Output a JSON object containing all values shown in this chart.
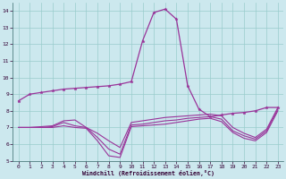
{
  "xlabel": "Windchill (Refroidissement éolien,°C)",
  "bg_color": "#cce8ee",
  "line_color": "#993399",
  "grid_color": "#99cccc",
  "xlim": [
    -0.5,
    23.5
  ],
  "ylim": [
    5.0,
    14.5
  ],
  "yticks": [
    5,
    6,
    7,
    8,
    9,
    10,
    11,
    12,
    13,
    14
  ],
  "xticks": [
    0,
    1,
    2,
    3,
    4,
    5,
    6,
    7,
    8,
    9,
    10,
    11,
    12,
    13,
    14,
    15,
    16,
    17,
    18,
    19,
    20,
    21,
    22,
    23
  ],
  "s1_x": [
    0,
    1,
    2,
    3,
    4,
    5,
    6,
    7,
    8,
    9,
    10,
    11,
    12,
    13,
    14,
    15,
    16,
    17,
    18,
    19,
    20,
    21,
    22,
    23
  ],
  "s1_y": [
    8.6,
    9.0,
    9.1,
    9.2,
    9.3,
    9.35,
    9.4,
    9.45,
    9.5,
    9.6,
    9.75,
    12.2,
    13.9,
    14.1,
    13.5,
    9.5,
    8.1,
    7.65,
    7.75,
    7.85,
    7.9,
    8.0,
    8.2,
    8.2
  ],
  "s2_x": [
    0,
    1,
    2,
    3,
    4,
    5,
    6,
    7,
    8,
    9,
    10,
    11,
    12,
    13,
    14,
    15,
    16,
    17,
    18,
    19,
    20,
    21,
    22,
    23
  ],
  "s2_y": [
    7.0,
    7.0,
    7.05,
    7.1,
    7.4,
    7.45,
    7.0,
    6.65,
    6.2,
    5.8,
    7.3,
    7.4,
    7.5,
    7.6,
    7.65,
    7.7,
    7.75,
    7.8,
    7.7,
    7.0,
    6.65,
    6.4,
    6.9,
    8.2
  ],
  "s3_x": [
    0,
    1,
    2,
    3,
    4,
    5,
    6,
    7,
    8,
    9,
    10,
    11,
    12,
    13,
    14,
    15,
    16,
    17,
    18,
    19,
    20,
    21,
    22,
    23
  ],
  "s3_y": [
    7.0,
    7.0,
    7.0,
    7.05,
    7.3,
    7.1,
    7.0,
    6.4,
    5.7,
    5.4,
    7.15,
    7.2,
    7.3,
    7.4,
    7.45,
    7.55,
    7.6,
    7.65,
    7.5,
    6.8,
    6.5,
    6.3,
    6.8,
    8.1
  ],
  "s4_x": [
    0,
    1,
    2,
    3,
    4,
    5,
    6,
    7,
    8,
    9,
    10,
    11,
    12,
    13,
    14,
    15,
    16,
    17,
    18,
    19,
    20,
    21,
    22,
    23
  ],
  "s4_y": [
    7.0,
    7.0,
    7.0,
    7.0,
    7.1,
    7.0,
    6.95,
    6.2,
    5.3,
    5.2,
    7.05,
    7.1,
    7.15,
    7.2,
    7.3,
    7.4,
    7.5,
    7.55,
    7.35,
    6.7,
    6.35,
    6.2,
    6.7,
    8.0
  ]
}
